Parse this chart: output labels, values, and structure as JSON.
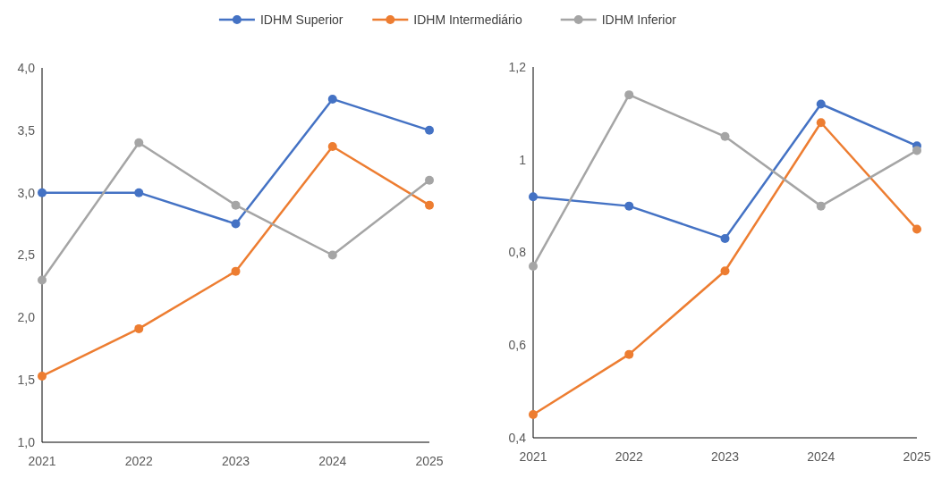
{
  "chart_data": [
    {
      "type": "line",
      "categories": [
        "2021",
        "2022",
        "2023",
        "2024",
        "2025"
      ],
      "legend": "top",
      "marker": "circle",
      "line_style": "solid",
      "ylim": [
        1.0,
        4.0
      ],
      "yticks": [
        {
          "value": 1.0,
          "label": "1,0"
        },
        {
          "value": 1.5,
          "label": "1,5"
        },
        {
          "value": 2.0,
          "label": "2,0"
        },
        {
          "value": 2.5,
          "label": "2,5"
        },
        {
          "value": 3.0,
          "label": "3,0"
        },
        {
          "value": 3.5,
          "label": "3,5"
        },
        {
          "value": 4.0,
          "label": "4,0"
        }
      ],
      "series": [
        {
          "name": "IDHM Superior",
          "color": "#4472c4",
          "values": [
            3.0,
            3.0,
            2.75,
            3.75,
            3.5
          ]
        },
        {
          "name": "IDHM Intermediário",
          "color": "#ed7d31",
          "values": [
            1.53,
            1.91,
            2.37,
            3.37,
            2.9
          ]
        },
        {
          "name": "IDHM Inferior",
          "color": "#a5a5a5",
          "values": [
            2.3,
            3.4,
            2.9,
            2.5,
            3.1
          ]
        }
      ]
    },
    {
      "type": "line",
      "categories": [
        "2021",
        "2022",
        "2023",
        "2024",
        "2025"
      ],
      "marker": "circle",
      "line_style": "solid",
      "ylim": [
        0.4,
        1.2
      ],
      "yticks": [
        {
          "value": 0.4,
          "label": "0,4"
        },
        {
          "value": 0.6,
          "label": "0,6"
        },
        {
          "value": 0.8,
          "label": "0,8"
        },
        {
          "value": 1.0,
          "label": "1"
        },
        {
          "value": 1.2,
          "label": "1,2"
        }
      ],
      "series": [
        {
          "color": "#4472c4",
          "values": [
            0.92,
            0.9,
            0.83,
            1.12,
            1.03
          ]
        },
        {
          "color": "#ed7d31",
          "values": [
            0.45,
            0.58,
            0.76,
            1.08,
            0.85
          ]
        },
        {
          "color": "#a5a5a5",
          "values": [
            0.77,
            1.14,
            1.05,
            0.9,
            1.02
          ]
        }
      ]
    }
  ]
}
